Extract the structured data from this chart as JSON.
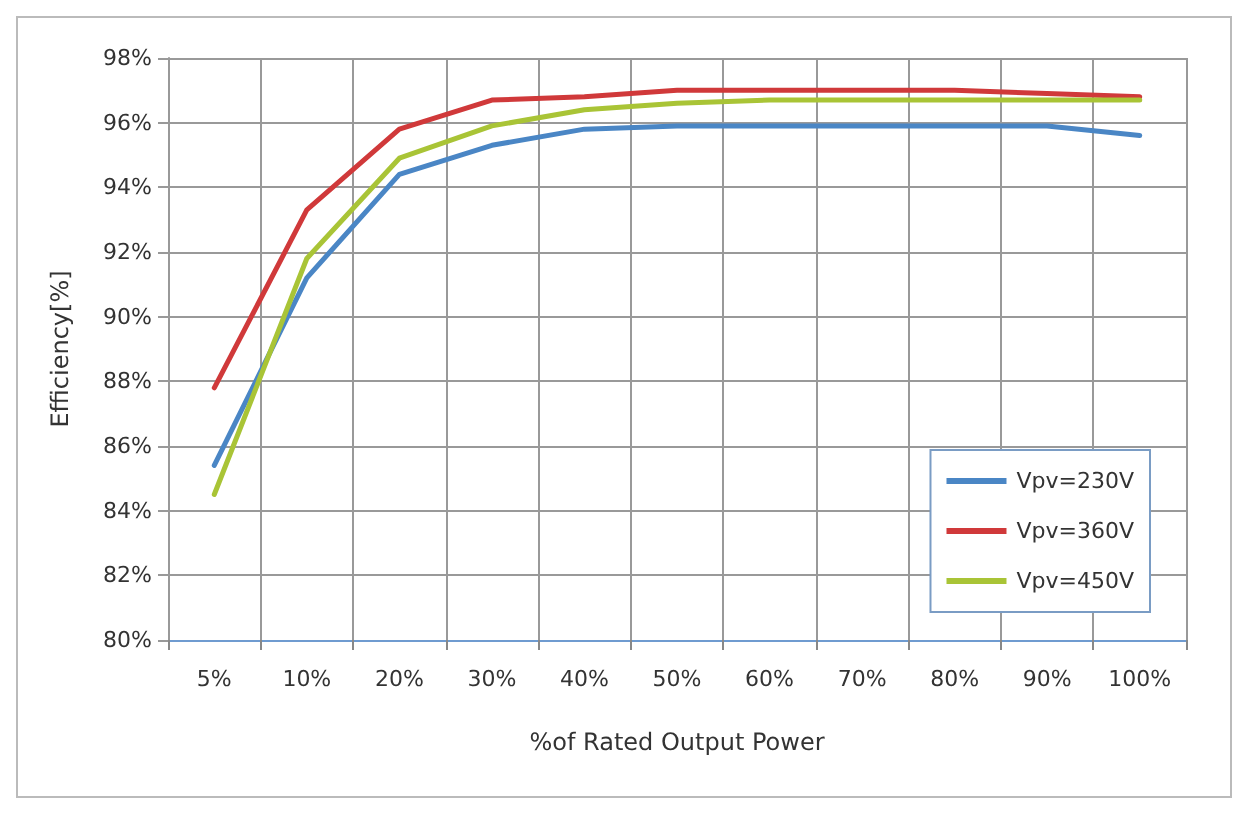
{
  "chart_data": {
    "type": "line",
    "xlabel": "%of Rated Output Power",
    "ylabel": "Efficiency[%]",
    "categories": [
      "5%",
      "10%",
      "20%",
      "30%",
      "40%",
      "50%",
      "60%",
      "70%",
      "80%",
      "90%",
      "100%"
    ],
    "series": [
      {
        "name": "Vpv=230V",
        "color": "#4a86c5",
        "values": [
          85.4,
          91.2,
          94.4,
          95.3,
          95.8,
          95.9,
          95.9,
          95.9,
          95.9,
          95.9,
          95.6
        ]
      },
      {
        "name": "Vpv=360V",
        "color": "#d0393a",
        "values": [
          87.8,
          93.3,
          95.8,
          96.7,
          96.8,
          97.0,
          97.0,
          97.0,
          97.0,
          96.9,
          96.8
        ]
      },
      {
        "name": "Vpv=450V",
        "color": "#a9c436",
        "values": [
          84.5,
          91.8,
          94.9,
          95.9,
          96.4,
          96.6,
          96.7,
          96.7,
          96.7,
          96.7,
          96.7
        ]
      }
    ],
    "ylim": [
      80,
      98
    ],
    "yticks": [
      {
        "value": 80,
        "label": "80%"
      },
      {
        "value": 82,
        "label": "82%"
      },
      {
        "value": 84,
        "label": "84%"
      },
      {
        "value": 86,
        "label": "86%"
      },
      {
        "value": 88,
        "label": "88%"
      },
      {
        "value": 90,
        "label": "90%"
      },
      {
        "value": 92,
        "label": "92%"
      },
      {
        "value": 94,
        "label": "94%"
      },
      {
        "value": 96,
        "label": "96%"
      },
      {
        "value": 98,
        "label": "98%"
      }
    ],
    "grid": true,
    "legend": "bottom right",
    "marker": "none",
    "line_style": "solid"
  }
}
